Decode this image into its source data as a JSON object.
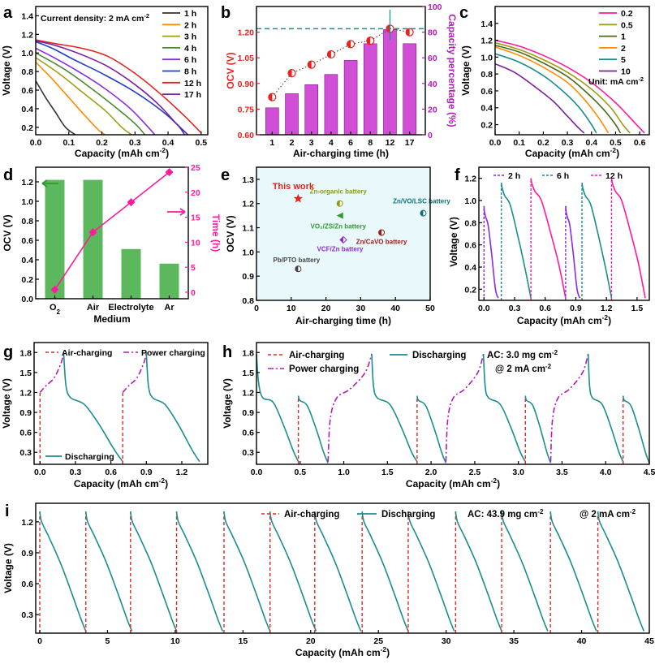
{
  "colors": {
    "black": "#000000",
    "red": "#e8231f",
    "magenta": "#ff1a9e",
    "purple": "#b21bb8",
    "violet": "#c04ad0",
    "green": "#5cb85c",
    "teal": "#1a8e8e",
    "orange": "#ff8c00",
    "olive": "#8c9a10",
    "grey": "#666666",
    "blue": "#1f3fcc",
    "dark_teal": "#0e6f72",
    "pink_bar": "#d14ed6",
    "lightbg": "#e9f8fb"
  },
  "chart_data": [
    {
      "id": "a",
      "panel_label": "a",
      "type": "line",
      "title": "",
      "xlabel": "Capacity (mAh cm",
      "xlabel_sup": "-2",
      "xlabel_end": ")",
      "ylabel": "Voltage (V)",
      "xlim": [
        0,
        0.52
      ],
      "ylim": [
        0.12,
        1.5
      ],
      "xticks": [
        0.0,
        0.1,
        0.2,
        0.3,
        0.4,
        0.5
      ],
      "xtick_labels": [
        "0.0",
        "0.1",
        "0.2",
        "0.3",
        "0.4",
        "0.5"
      ],
      "yticks": [
        0.2,
        0.4,
        0.6,
        0.8,
        1.0,
        1.2,
        1.4
      ],
      "ytick_labels": [
        "0.2",
        "0.4",
        "0.6",
        "0.8",
        "1.0",
        "1.2",
        "1.4"
      ],
      "annotation": "Current density: 2 mA cm",
      "annotation_sup": "-2",
      "series": [
        {
          "name": "1 h",
          "color": "#333333",
          "x": [
            0,
            0.03,
            0.06,
            0.09,
            0.12
          ],
          "y": [
            0.7,
            0.52,
            0.36,
            0.2,
            0.12
          ]
        },
        {
          "name": "2 h",
          "color": "#ff8c00",
          "x": [
            0,
            0.05,
            0.1,
            0.15,
            0.19,
            0.21
          ],
          "y": [
            0.9,
            0.72,
            0.52,
            0.32,
            0.17,
            0.12
          ]
        },
        {
          "name": "3 h",
          "color": "#9aa014",
          "x": [
            0,
            0.07,
            0.14,
            0.21,
            0.26,
            0.29
          ],
          "y": [
            0.95,
            0.78,
            0.58,
            0.38,
            0.2,
            0.12
          ]
        },
        {
          "name": "4 h",
          "color": "#4b8a2e",
          "x": [
            0,
            0.08,
            0.16,
            0.24,
            0.3,
            0.33
          ],
          "y": [
            1.0,
            0.84,
            0.64,
            0.42,
            0.24,
            0.12
          ]
        },
        {
          "name": "6 h",
          "color": "#8a2be2",
          "x": [
            0,
            0.05,
            0.12,
            0.2,
            0.28,
            0.33,
            0.36
          ],
          "y": [
            1.05,
            0.96,
            0.82,
            0.64,
            0.42,
            0.24,
            0.12
          ]
        },
        {
          "name": "8 h",
          "color": "#1f3fcc",
          "x": [
            0,
            0.05,
            0.12,
            0.2,
            0.3,
            0.38,
            0.43,
            0.45
          ],
          "y": [
            1.12,
            1.05,
            0.92,
            0.78,
            0.58,
            0.38,
            0.22,
            0.12
          ]
        },
        {
          "name": "12 h",
          "color": "#e8231f",
          "x": [
            0,
            0.06,
            0.14,
            0.22,
            0.3,
            0.38,
            0.45,
            0.5
          ],
          "y": [
            1.14,
            1.1,
            1.05,
            0.96,
            0.78,
            0.55,
            0.32,
            0.14
          ]
        },
        {
          "name": "17 h",
          "color": "#7a1fa0",
          "x": [
            0,
            0.06,
            0.14,
            0.22,
            0.3,
            0.37,
            0.42,
            0.46
          ],
          "y": [
            1.13,
            1.08,
            0.98,
            0.85,
            0.66,
            0.45,
            0.26,
            0.12
          ]
        }
      ]
    },
    {
      "id": "b",
      "panel_label": "b",
      "type": "bar+line",
      "xlabel": "Air-charging time (h)",
      "ylabel": "OCV (V)",
      "ylabel2": "Capacity percentage (%)",
      "categories": [
        "1",
        "2",
        "3",
        "4",
        "6",
        "8",
        "12",
        "17"
      ],
      "ocv": [
        0.82,
        0.96,
        1.01,
        1.07,
        1.13,
        1.15,
        1.22,
        1.2
      ],
      "capacity_percentage": [
        21,
        32,
        39,
        47,
        58,
        71,
        82,
        71
      ],
      "ylim": [
        0.6,
        1.35
      ],
      "ylim2": [
        0,
        100
      ],
      "yticks": [
        0.6,
        0.75,
        0.9,
        1.05,
        1.2
      ],
      "ytick_labels": [
        "0.60",
        "0.75",
        "0.90",
        "1.05",
        "1.20"
      ],
      "yticks2": [
        0,
        20,
        40,
        60,
        80,
        100
      ],
      "ytick2_labels": [
        "0",
        "20",
        "40",
        "60",
        "80",
        "100"
      ],
      "dashed_ref": 1.22
    },
    {
      "id": "c",
      "panel_label": "c",
      "type": "line",
      "xlabel": "Capacity (mAh cm",
      "xlabel_sup": "-2",
      "xlabel_end": ")",
      "ylabel": "Voltage (V)",
      "xlim": [
        0,
        0.64
      ],
      "ylim": [
        0.08,
        1.6
      ],
      "xticks": [
        0.0,
        0.1,
        0.2,
        0.3,
        0.4,
        0.5,
        0.6
      ],
      "xtick_labels": [
        "0.0",
        "0.1",
        "0.2",
        "0.3",
        "0.4",
        "0.5",
        "0.6"
      ],
      "yticks": [
        0.2,
        0.4,
        0.6,
        0.8,
        1.0,
        1.2,
        1.4
      ],
      "ytick_labels": [
        "0.2",
        "0.4",
        "0.6",
        "0.8",
        "1.0",
        "1.2",
        "1.4"
      ],
      "annotation": "Unit: mA cm",
      "annotation_sup": "-2",
      "series": [
        {
          "name": "0.2",
          "color": "#ff1a9e",
          "x": [
            0,
            0.1,
            0.2,
            0.3,
            0.4,
            0.5,
            0.58,
            0.62
          ],
          "y": [
            1.2,
            1.13,
            1.02,
            0.88,
            0.7,
            0.46,
            0.22,
            0.1
          ]
        },
        {
          "name": "0.5",
          "color": "#9aa014",
          "x": [
            0,
            0.1,
            0.2,
            0.3,
            0.4,
            0.48,
            0.53,
            0.56
          ],
          "y": [
            1.17,
            1.09,
            0.97,
            0.82,
            0.62,
            0.4,
            0.2,
            0.1
          ]
        },
        {
          "name": "1",
          "color": "#4b6b1a",
          "x": [
            0,
            0.1,
            0.2,
            0.3,
            0.38,
            0.45,
            0.5,
            0.52
          ],
          "y": [
            1.14,
            1.06,
            0.93,
            0.77,
            0.58,
            0.38,
            0.2,
            0.1
          ]
        },
        {
          "name": "2",
          "color": "#ff8c00",
          "x": [
            0,
            0.1,
            0.2,
            0.3,
            0.37,
            0.43,
            0.47
          ],
          "y": [
            1.12,
            1.02,
            0.88,
            0.7,
            0.5,
            0.28,
            0.1
          ]
        },
        {
          "name": "5",
          "color": "#1a8e8e",
          "x": [
            0,
            0.1,
            0.2,
            0.28,
            0.35,
            0.4,
            0.42
          ],
          "y": [
            1.04,
            0.94,
            0.78,
            0.6,
            0.4,
            0.2,
            0.1
          ]
        },
        {
          "name": "10",
          "color": "#7a1fa0",
          "x": [
            0,
            0.08,
            0.16,
            0.24,
            0.3,
            0.35,
            0.37
          ],
          "y": [
            0.92,
            0.82,
            0.66,
            0.48,
            0.3,
            0.15,
            0.1
          ]
        }
      ]
    },
    {
      "id": "d",
      "panel_label": "d",
      "type": "bar+line",
      "xlabel": "Medium",
      "ylabel": "OCV (V)",
      "ylabel2": "Time (h)",
      "categories": [
        "O",
        "Air",
        "Electrolyte",
        "Ar"
      ],
      "category_sub": [
        "2",
        "",
        "",
        ""
      ],
      "ocv": [
        1.22,
        1.22,
        0.51,
        0.36
      ],
      "time_h": [
        0.5,
        12,
        18,
        24
      ],
      "ylim": [
        0,
        1.35
      ],
      "ylim2": [
        -1.3,
        25
      ],
      "yticks": [
        0,
        0.2,
        0.4,
        0.6,
        0.8,
        1.0,
        1.2
      ],
      "ytick_labels": [
        "0.0",
        "0.2",
        "0.4",
        "0.6",
        "0.8",
        "1.0",
        "1.2"
      ],
      "yticks2": [
        0,
        5,
        10,
        15,
        20,
        25
      ],
      "ytick2_labels": [
        "0",
        "5",
        "10",
        "15",
        "20",
        "25"
      ]
    },
    {
      "id": "e",
      "panel_label": "e",
      "type": "scatter",
      "xlabel": "Air-charging time (h)",
      "ylabel": "OCV (V)",
      "xlim": [
        0,
        50
      ],
      "ylim": [
        0.8,
        1.35
      ],
      "xticks": [
        0,
        10,
        20,
        30,
        40,
        50
      ],
      "xtick_labels": [
        "0",
        "10",
        "20",
        "30",
        "40",
        "50"
      ],
      "yticks": [
        0.8,
        0.9,
        1.0,
        1.1,
        1.2,
        1.3
      ],
      "ytick_labels": [
        "0.8",
        "0.9",
        "1.0",
        "1.1",
        "1.2",
        "1.3"
      ],
      "points": [
        {
          "label": "This work",
          "x": 12,
          "y": 1.22,
          "color": "#e8231f",
          "marker": "star"
        },
        {
          "label": "Zn-organic battery",
          "x": 24,
          "y": 1.2,
          "color": "#8c9a10",
          "marker": "half"
        },
        {
          "label": "Zn/VO/LSC battery",
          "x": 48,
          "y": 1.16,
          "color": "#0e6f72",
          "marker": "half"
        },
        {
          "label": "VO₂/ZS/Zn battery",
          "x": 24,
          "y": 1.15,
          "color": "#2e9a2e",
          "marker": "tri"
        },
        {
          "label": "Zn/CaVO battery",
          "x": 36,
          "y": 1.08,
          "color": "#a01a1a",
          "marker": "half"
        },
        {
          "label": "VCF/Zn battery",
          "x": 25,
          "y": 1.05,
          "color": "#8a2be2",
          "marker": "diamond"
        },
        {
          "label": "Pb/PTO battery",
          "x": 12,
          "y": 0.93,
          "color": "#444444",
          "marker": "half"
        }
      ]
    },
    {
      "id": "f",
      "panel_label": "f",
      "type": "line",
      "xlabel": "Capacity (mAh cm",
      "xlabel_sup": "-2",
      "xlabel_end": ")",
      "ylabel": "Voltage (V)",
      "xlim": [
        -0.05,
        1.62
      ],
      "ylim": [
        0.1,
        1.3
      ],
      "xticks": [
        0.0,
        0.3,
        0.6,
        0.9,
        1.2,
        1.5
      ],
      "xtick_labels": [
        "0.0",
        "0.3",
        "0.6",
        "0.9",
        "1.2",
        "1.5"
      ],
      "yticks": [
        0.2,
        0.4,
        0.6,
        0.8,
        1.0,
        1.2
      ],
      "ytick_labels": [
        "0.2",
        "0.4",
        "0.6",
        "0.8",
        "1.0",
        "1.2"
      ],
      "legend": [
        {
          "name": "2 h",
          "color": "#8a2be2"
        },
        {
          "name": "6 h",
          "color": "#1a8e8e"
        },
        {
          "name": "12 h",
          "color": "#ff1a9e"
        }
      ],
      "cycles": [
        {
          "start": 0.0,
          "width": 0.14,
          "v0": 0.95,
          "color": "#8a2be2"
        },
        {
          "start": 0.17,
          "width": 0.29,
          "v0": 1.16,
          "color": "#1a8e8e"
        },
        {
          "start": 0.46,
          "width": 0.34,
          "v0": 1.2,
          "color": "#ff1a9e"
        },
        {
          "start": 0.8,
          "width": 0.14,
          "v0": 0.95,
          "color": "#8a2be2"
        },
        {
          "start": 0.96,
          "width": 0.29,
          "v0": 1.16,
          "color": "#1a8e8e"
        },
        {
          "start": 1.25,
          "width": 0.33,
          "v0": 1.2,
          "color": "#ff1a9e"
        }
      ]
    },
    {
      "id": "g",
      "panel_label": "g",
      "type": "line",
      "xlabel": "Capacity (mAh cm",
      "xlabel_sup": "-2",
      "xlabel_end": ")",
      "ylabel": "Voltage (V)",
      "xlim": [
        -0.05,
        1.42
      ],
      "ylim": [
        0.12,
        1.95
      ],
      "xticks": [
        0.0,
        0.3,
        0.6,
        0.9,
        1.2
      ],
      "xtick_labels": [
        "0.0",
        "0.3",
        "0.6",
        "0.9",
        "1.2"
      ],
      "yticks": [
        0.3,
        0.6,
        0.9,
        1.2,
        1.5,
        1.8
      ],
      "ytick_labels": [
        "0.3",
        "0.6",
        "0.9",
        "1.2",
        "1.5",
        "1.8"
      ],
      "legend": [
        {
          "name": "Air-charging",
          "color": "#e8231f"
        },
        {
          "name": "Power charging",
          "color": "#7a1fa0"
        },
        {
          "name": "Discharging",
          "color": "#1a8e8e"
        }
      ],
      "cycles": [
        {
          "air_at": 0.0,
          "charge_end": 0.2,
          "discharge_end": 0.7
        },
        {
          "air_at": 0.7,
          "charge_end": 0.9,
          "discharge_end": 1.35
        }
      ]
    },
    {
      "id": "h",
      "panel_label": "h",
      "type": "line",
      "xlabel": "Capacity (mAh cm",
      "xlabel_sup": "-2",
      "xlabel_end": ")",
      "ylabel": "Voltage (V)",
      "xlim": [
        0,
        4.5
      ],
      "ylim": [
        0.12,
        1.95
      ],
      "xticks": [
        0.0,
        0.5,
        1.0,
        1.5,
        2.0,
        2.5,
        3.0,
        3.5,
        4.0,
        4.5
      ],
      "xtick_labels": [
        "0.0",
        "0.5",
        "1.0",
        "1.5",
        "2.0",
        "2.5",
        "3.0",
        "3.5",
        "4.0",
        "4.5"
      ],
      "yticks": [
        0.3,
        0.6,
        0.9,
        1.2,
        1.5,
        1.8
      ],
      "ytick_labels": [
        "0.3",
        "0.6",
        "0.9",
        "1.2",
        "1.5",
        "1.8"
      ],
      "legend": [
        {
          "name": "Air-charging",
          "color": "#e8231f"
        },
        {
          "name": "Power charging",
          "color": "#7a1fa0"
        },
        {
          "name": "Discharging",
          "color": "#1a8e8e"
        }
      ],
      "annotation_1": "AC: 3.0 mg cm",
      "annotation_1_sup": "-2",
      "annotation_2": "@ 2 mA cm",
      "annotation_2_sup": "-2",
      "first_discharge_end": 0.48,
      "cycles": [
        {
          "air_at": 0.48,
          "air_disch_end": 0.82,
          "charge_end": 1.32,
          "discharge_end": 1.84
        },
        {
          "air_at": 1.84,
          "air_disch_end": 2.17,
          "charge_end": 2.6,
          "discharge_end": 3.08
        },
        {
          "air_at": 3.08,
          "air_disch_end": 3.37,
          "charge_end": 3.8,
          "discharge_end": 4.2
        },
        {
          "air_at": 4.2,
          "air_disch_end": 4.5,
          "charge_end": null,
          "discharge_end": null
        }
      ]
    },
    {
      "id": "i",
      "panel_label": "i",
      "type": "line",
      "xlabel": "Capacity (mAh cm",
      "xlabel_sup": "-2",
      "xlabel_end": ")",
      "ylabel": "Voltage (V)",
      "xlim": [
        -0.3,
        45
      ],
      "ylim": [
        0.12,
        1.38
      ],
      "xticks": [
        0,
        5,
        10,
        15,
        20,
        25,
        30,
        35,
        40,
        45
      ],
      "xtick_labels": [
        "0",
        "5",
        "10",
        "15",
        "20",
        "25",
        "30",
        "35",
        "40",
        "45"
      ],
      "yticks": [
        0.3,
        0.6,
        0.9,
        1.2
      ],
      "ytick_labels": [
        "0.3",
        "0.6",
        "0.9",
        "1.2"
      ],
      "legend": [
        {
          "name": "Air-charging",
          "color": "#e8231f"
        },
        {
          "name": "Discharging",
          "color": "#1a8e8e"
        }
      ],
      "annotation_1": "AC: 43.9 mg cm",
      "annotation_1_sup": "-2",
      "annotation_2": "@ 2 mA cm",
      "annotation_2_sup": "-2",
      "cycle_starts": [
        0.0,
        3.4,
        6.7,
        10.1,
        13.6,
        17.0,
        20.3,
        23.8,
        27.2,
        30.7,
        34.1,
        37.7,
        41.2
      ],
      "cycle_width": 3.4,
      "v0": 1.3
    }
  ]
}
